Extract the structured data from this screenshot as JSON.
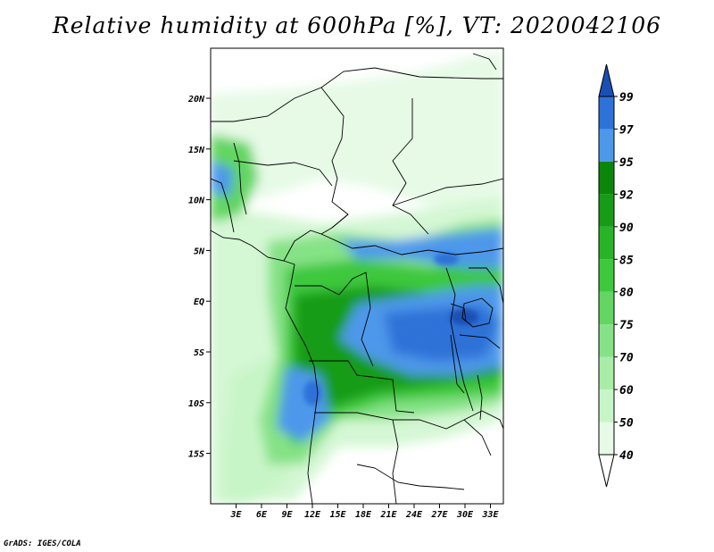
{
  "title": "Relative humidity at 600hPa [%], VT: 2020042106",
  "credit": "GrADS: IGES/COLA",
  "chart_data": {
    "type": "heatmap",
    "title": "Relative humidity at 600hPa [%], VT: 2020042106",
    "lat_ticks": [
      "20N",
      "15N",
      "10N",
      "5N",
      "EQ",
      "5S",
      "10S",
      "15S"
    ],
    "lon_ticks": [
      "3E",
      "6E",
      "9E",
      "12E",
      "15E",
      "18E",
      "21E",
      "24E",
      "27E",
      "30E",
      "33E"
    ],
    "colorbar": {
      "levels": [
        "40",
        "50",
        "60",
        "70",
        "75",
        "80",
        "85",
        "90",
        "92",
        "95",
        "97",
        "99"
      ],
      "colors": [
        "#ffffff",
        "#e6fae6",
        "#c8f5c8",
        "#a8eca8",
        "#86e286",
        "#62d562",
        "#3ec83e",
        "#28b428",
        "#169c16",
        "#0a870a",
        "#4e98ea",
        "#2d72d8",
        "#1a50b4"
      ],
      "orientation": "vertical",
      "placement": "right"
    }
  }
}
